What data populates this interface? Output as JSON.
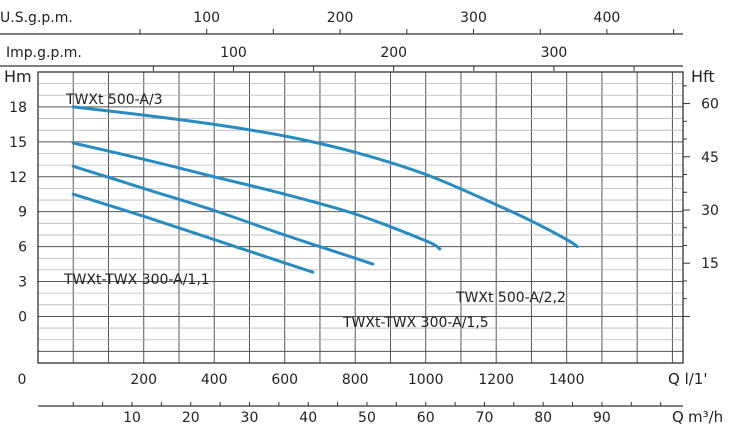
{
  "chart_data": {
    "type": "line",
    "colors": {
      "curve": "#2a8bc0",
      "grid": "#555555",
      "text": "#222222"
    },
    "top_axes": {
      "usgpm": {
        "label": "U.S.g.p.m.",
        "ticks": [
          100,
          200,
          300,
          400
        ]
      },
      "impgpm": {
        "label": "Imp.g.p.m.",
        "ticks": [
          100,
          200,
          300
        ]
      }
    },
    "x_axis": {
      "unit": "l/1'",
      "label": "Q l/1'",
      "range": [
        -100,
        1730
      ],
      "gridlines": [
        -100,
        0,
        100,
        200,
        300,
        400,
        500,
        600,
        700,
        800,
        900,
        1000,
        1100,
        1200,
        1300,
        1400,
        1500,
        1600,
        1700
      ],
      "ticks": [
        200,
        400,
        600,
        800,
        1000,
        1200,
        1400
      ]
    },
    "bottom_axis": {
      "unit": "m³/h",
      "label_q": "Q",
      "label_unit": "m³/h",
      "ticks": [
        10,
        20,
        30,
        40,
        50,
        60,
        70,
        80,
        90
      ]
    },
    "y_axis": {
      "unit": "m",
      "label": "Hm",
      "range": [
        -4,
        21
      ],
      "ticks": [
        0,
        3,
        6,
        9,
        12,
        15,
        18
      ]
    },
    "right_axis": {
      "unit": "ft",
      "label": "Hft",
      "ticks": [
        15,
        30,
        45,
        60
      ]
    },
    "series": [
      {
        "name": "TWXt 500-A/3",
        "x": [
          0,
          200,
          400,
          600,
          800,
          1000,
          1200,
          1300,
          1400,
          1430
        ],
        "y": [
          18,
          17.3,
          16.5,
          15.5,
          14.1,
          12.2,
          9.6,
          8.2,
          6.6,
          6.0
        ]
      },
      {
        "name": "TWXt 500-A/2,2",
        "x": [
          0,
          200,
          400,
          600,
          800,
          1000,
          1040
        ],
        "y": [
          14.9,
          13.5,
          12.0,
          10.5,
          8.8,
          6.5,
          5.8
        ]
      },
      {
        "name": "TWXt-TWX 300-A/1,5",
        "x": [
          0,
          200,
          400,
          600,
          800,
          850
        ],
        "y": [
          12.9,
          11.0,
          9.1,
          7.0,
          5.0,
          4.5
        ]
      },
      {
        "name": "TWXt-TWX 300-A/1,1",
        "x": [
          0,
          200,
          400,
          600,
          680
        ],
        "y": [
          10.5,
          8.6,
          6.6,
          4.6,
          3.8
        ]
      }
    ]
  }
}
